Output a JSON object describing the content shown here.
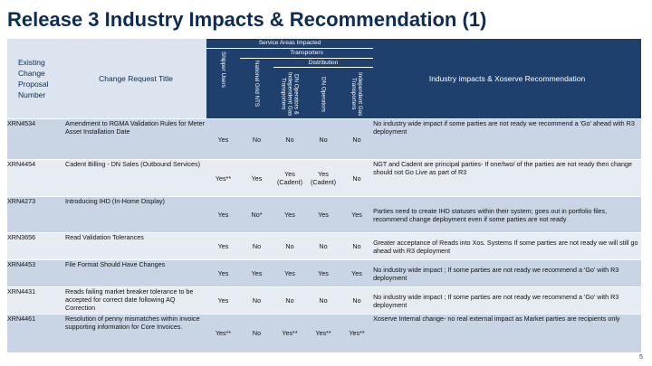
{
  "title": "Release 3 Industry Impacts & Recommendation (1)",
  "header": {
    "service_areas": "Service Areas Impacted",
    "transporters": "Transporters",
    "distribution": "Distribution",
    "existing_cp": "Existing Change Proposal Number",
    "cr_title": "Change Request Title",
    "shipper_users": "Shipper Users",
    "national_grid": "National Grid NTS",
    "ngd_idn": "DN Operators & Independent Gas Transporters",
    "dn_operators": "DN Operators",
    "iga": "Independent Gas Transporters",
    "industry": "Industry impacts & Xoserve Recommendation"
  },
  "rows": [
    {
      "cp": "XRN4534",
      "title": "Amendment to RGMA Validation Rules for Meter Asset Installation Date",
      "shipper": "Yes",
      "nts": "No",
      "dnidn": "No",
      "dn": "No",
      "igt": "No",
      "rec": "No industry wide impact if some parties are not ready we  recommend a 'Go' ahead with R3 deployment"
    },
    {
      "cp": "XRN4454",
      "title": "Cadent Billing - DN Sales (Outbound Services)",
      "shipper": "Yes**",
      "nts": "Yes",
      "dnidn": "Yes (Cadent)",
      "dn": "Yes (Cadent)",
      "igt": "No",
      "rec": "NGT and Cadent are principal parties- If one/two/ of the parties are not ready then change should not Go Live as part of R3"
    },
    {
      "cp": "XRN4273",
      "title": "Introducing IHD (In-Home Display)",
      "shipper": "Yes",
      "nts": "No*",
      "dnidn": "Yes",
      "dn": "Yes",
      "igt": "Yes",
      "rec": "Parties need to create IHD statuses within their system; goes out in portfolio files, recommend change deployment even if some parties are not ready"
    },
    {
      "cp": "XRN3656",
      "title": "Read Validation Tolerances",
      "shipper": "Yes",
      "nts": "No",
      "dnidn": "No",
      "dn": "No",
      "igt": "No",
      "rec": "Greater acceptance of Reads into Xos. Systems If some parties are not ready we will still go ahead with R3 deployment"
    },
    {
      "cp": "XRN4453",
      "title": "File Format Should Have Changes",
      "shipper": "Yes",
      "nts": "Yes",
      "dnidn": "Yes",
      "dn": "Yes",
      "igt": "Yes",
      "rec": "No industry wide impact ; If some parties are not ready we  recommend a 'Go' with R3 deployment"
    },
    {
      "cp": "XRN4431",
      "title": "Reads failing market breaker tolerance to be accepted for correct date following AQ Correction",
      "shipper": "Yes",
      "nts": "No",
      "dnidn": "No",
      "dn": "No",
      "igt": "No",
      "rec": "No industry wide impact ; If some parties are not ready we  recommend a 'Go' with R3 deployment"
    },
    {
      "cp": "XRN4461",
      "title": "Resolution of penny mismatches within invoice supporting information for Core Invoices.",
      "shipper": "Yes**",
      "nts": "No",
      "dnidn": "Yes**",
      "dn": "Yes**",
      "igt": "Yes**",
      "rec": "Xoserve Internal change- no real external impact as Market parties are recipients only"
    }
  ],
  "footer_mark": "5"
}
